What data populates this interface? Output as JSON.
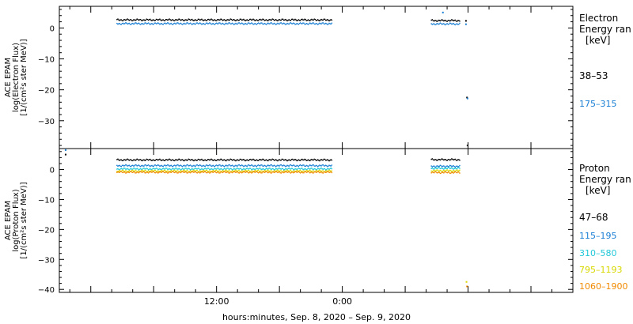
{
  "chart_data": [
    {
      "type": "scatter",
      "panel": "electron",
      "ylabel": [
        "ACE EPAM",
        "log(Electron Flux)",
        "[1/(cm²s ster MeV)]"
      ],
      "yticks": [
        0,
        -10,
        -20,
        -30
      ],
      "ylim": [
        -39,
        7
      ],
      "legend_title": [
        "Electron",
        "Energy ran",
        "[keV]"
      ],
      "series": [
        {
          "name": "38–53",
          "color": "#000000",
          "segments": [
            [
              2.5,
              23.0,
              2.6
            ],
            [
              32.5,
              35.2,
              2.4
            ]
          ],
          "extra_points": [
            [
              35.8,
              2.3
            ],
            [
              35.9,
              -22.5
            ],
            [
              35.95,
              -38.0
            ]
          ]
        },
        {
          "name": "175–315",
          "color": "#1a7fd4",
          "segments": [
            [
              2.5,
              23.0,
              1.4
            ],
            [
              32.5,
              35.2,
              1.3
            ]
          ],
          "extra_points": [
            [
              33.6,
              5.0
            ],
            [
              35.8,
              1.2
            ],
            [
              35.95,
              -22.8
            ]
          ]
        }
      ]
    },
    {
      "type": "scatter",
      "panel": "proton",
      "ylabel": [
        "ACE EPAM",
        "log(Proton Flux)",
        "[1/(cm²s ster MeV)]"
      ],
      "yticks": [
        0,
        -10,
        -20,
        -30,
        -40
      ],
      "ylim": [
        -41,
        7
      ],
      "legend_title": [
        "Proton",
        "Energy ran",
        "[keV]"
      ],
      "series": [
        {
          "name": "47–68",
          "color": "#000000",
          "segments": [
            [
              2.5,
              23.0,
              3.2
            ],
            [
              32.5,
              35.2,
              3.3
            ]
          ],
          "extra_points": [
            [
              -2.4,
              5.0
            ]
          ]
        },
        {
          "name": "115–195",
          "color": "#1a7fd4",
          "segments": [
            [
              2.5,
              23.0,
              1.3
            ],
            [
              32.5,
              35.2,
              1.1
            ]
          ],
          "extra_points": [
            [
              -2.4,
              6.5
            ]
          ]
        },
        {
          "name": "310–580",
          "color": "#22c8d8",
          "segments": [
            [
              2.5,
              23.0,
              0.2
            ],
            [
              32.5,
              35.2,
              0.4
            ]
          ],
          "extra_points": []
        },
        {
          "name": "795–1193",
          "color": "#d8d800",
          "segments": [
            [
              2.5,
              23.0,
              -0.5
            ],
            [
              32.5,
              35.2,
              -0.4
            ]
          ],
          "extra_points": [
            [
              35.85,
              -37.5
            ]
          ]
        },
        {
          "name": "1060–1900",
          "color": "#f08a00",
          "segments": [
            [
              2.5,
              23.0,
              -0.9
            ],
            [
              32.5,
              35.2,
              -1.0
            ]
          ],
          "extra_points": [
            [
              35.9,
              -39.0
            ]
          ]
        }
      ]
    }
  ],
  "xaxis": {
    "xlim": [
      -3,
      46
    ],
    "xtick_labels": [
      {
        "x": 12,
        "label": "12:00"
      },
      {
        "x": 24,
        "label": "0:00"
      }
    ],
    "major_ticks": [
      0,
      6,
      12,
      18,
      24,
      30,
      36,
      42
    ],
    "xlabel": "hours:minutes, Sep.  8, 2020 – Sep.  9, 2020"
  }
}
